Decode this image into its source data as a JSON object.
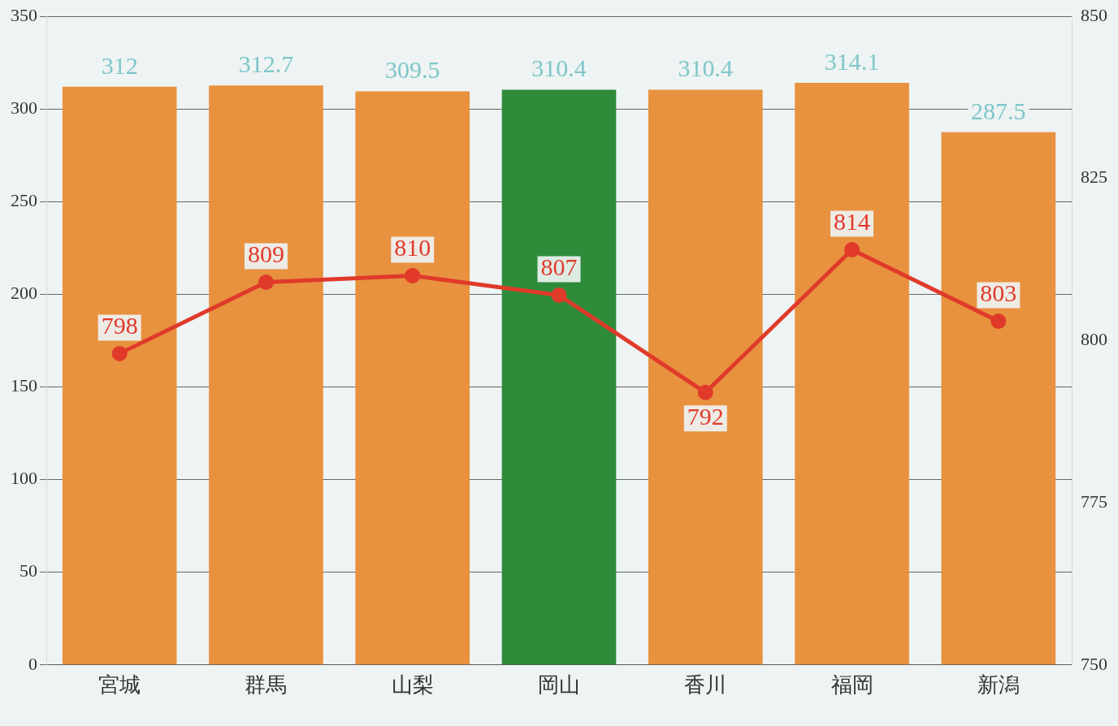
{
  "chart_data": {
    "type": "bar",
    "categories": [
      "宮城",
      "群馬",
      "山梨",
      "岡山",
      "香川",
      "福岡",
      "新潟"
    ],
    "series": [
      {
        "type": "bar",
        "colors": [
          "#e8913f",
          "#e8913f",
          "#e8913f",
          "#2e8b3a",
          "#e8913f",
          "#e8913f",
          "#e8913f"
        ],
        "values": [
          312,
          312.7,
          309.5,
          310.4,
          310.4,
          314.1,
          287.5
        ]
      },
      {
        "type": "line",
        "axis": "y2",
        "color": "#e03a2a",
        "values": [
          798,
          809,
          810,
          807,
          792,
          814,
          803
        ]
      }
    ],
    "ylim": [
      0,
      350
    ],
    "yticks": [
      0,
      50,
      100,
      150,
      200,
      250,
      300,
      350
    ],
    "y2lim": [
      750,
      850
    ],
    "y2ticks": [
      750,
      775,
      800,
      825,
      850
    ],
    "grid": "y",
    "legend": false,
    "marker": "circle",
    "line_style": "solid",
    "data_labels": true
  }
}
